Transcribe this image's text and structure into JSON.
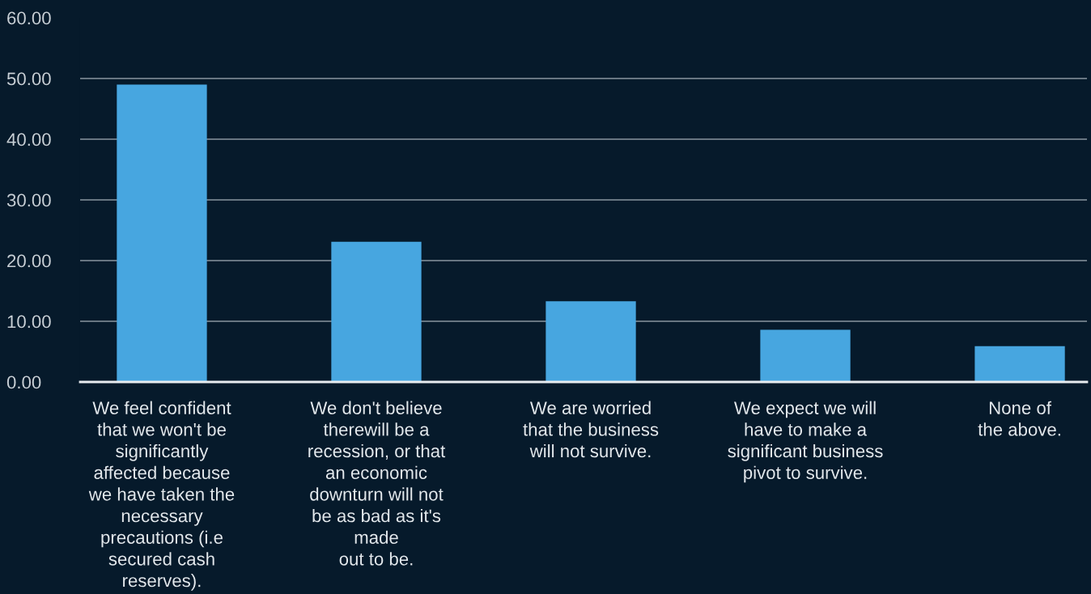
{
  "chart_data": {
    "type": "bar",
    "categories": [
      "We feel confident\nthat we won't be\nsignificantly\naffected because\nwe have taken the\nnecessary\nprecautions (i.e\nsecured cash\nreserves).",
      "We don't believe\ntherewill be a\nrecession, or that\nan economic\ndownturn will not\nbe as bad as it's\nmade\nout to be.",
      "We are worried\nthat the business\nwill not survive.",
      "We expect we will\nhave to make a\nsignificant business\npivot to survive.",
      "None of\nthe above."
    ],
    "values": [
      49.0,
      23.1,
      13.3,
      8.6,
      5.9
    ],
    "color": "#47a6e0",
    "ylim": [
      0,
      60
    ],
    "yticks": [
      {
        "value": 0,
        "label": "0.00"
      },
      {
        "value": 10,
        "label": "10.00"
      },
      {
        "value": 20,
        "label": "20.00"
      },
      {
        "value": 30,
        "label": "30.00"
      },
      {
        "value": 40,
        "label": "40.00"
      },
      {
        "value": 50,
        "label": "50.00"
      },
      {
        "value": 60,
        "label": "60.00"
      }
    ],
    "grid": "y"
  }
}
